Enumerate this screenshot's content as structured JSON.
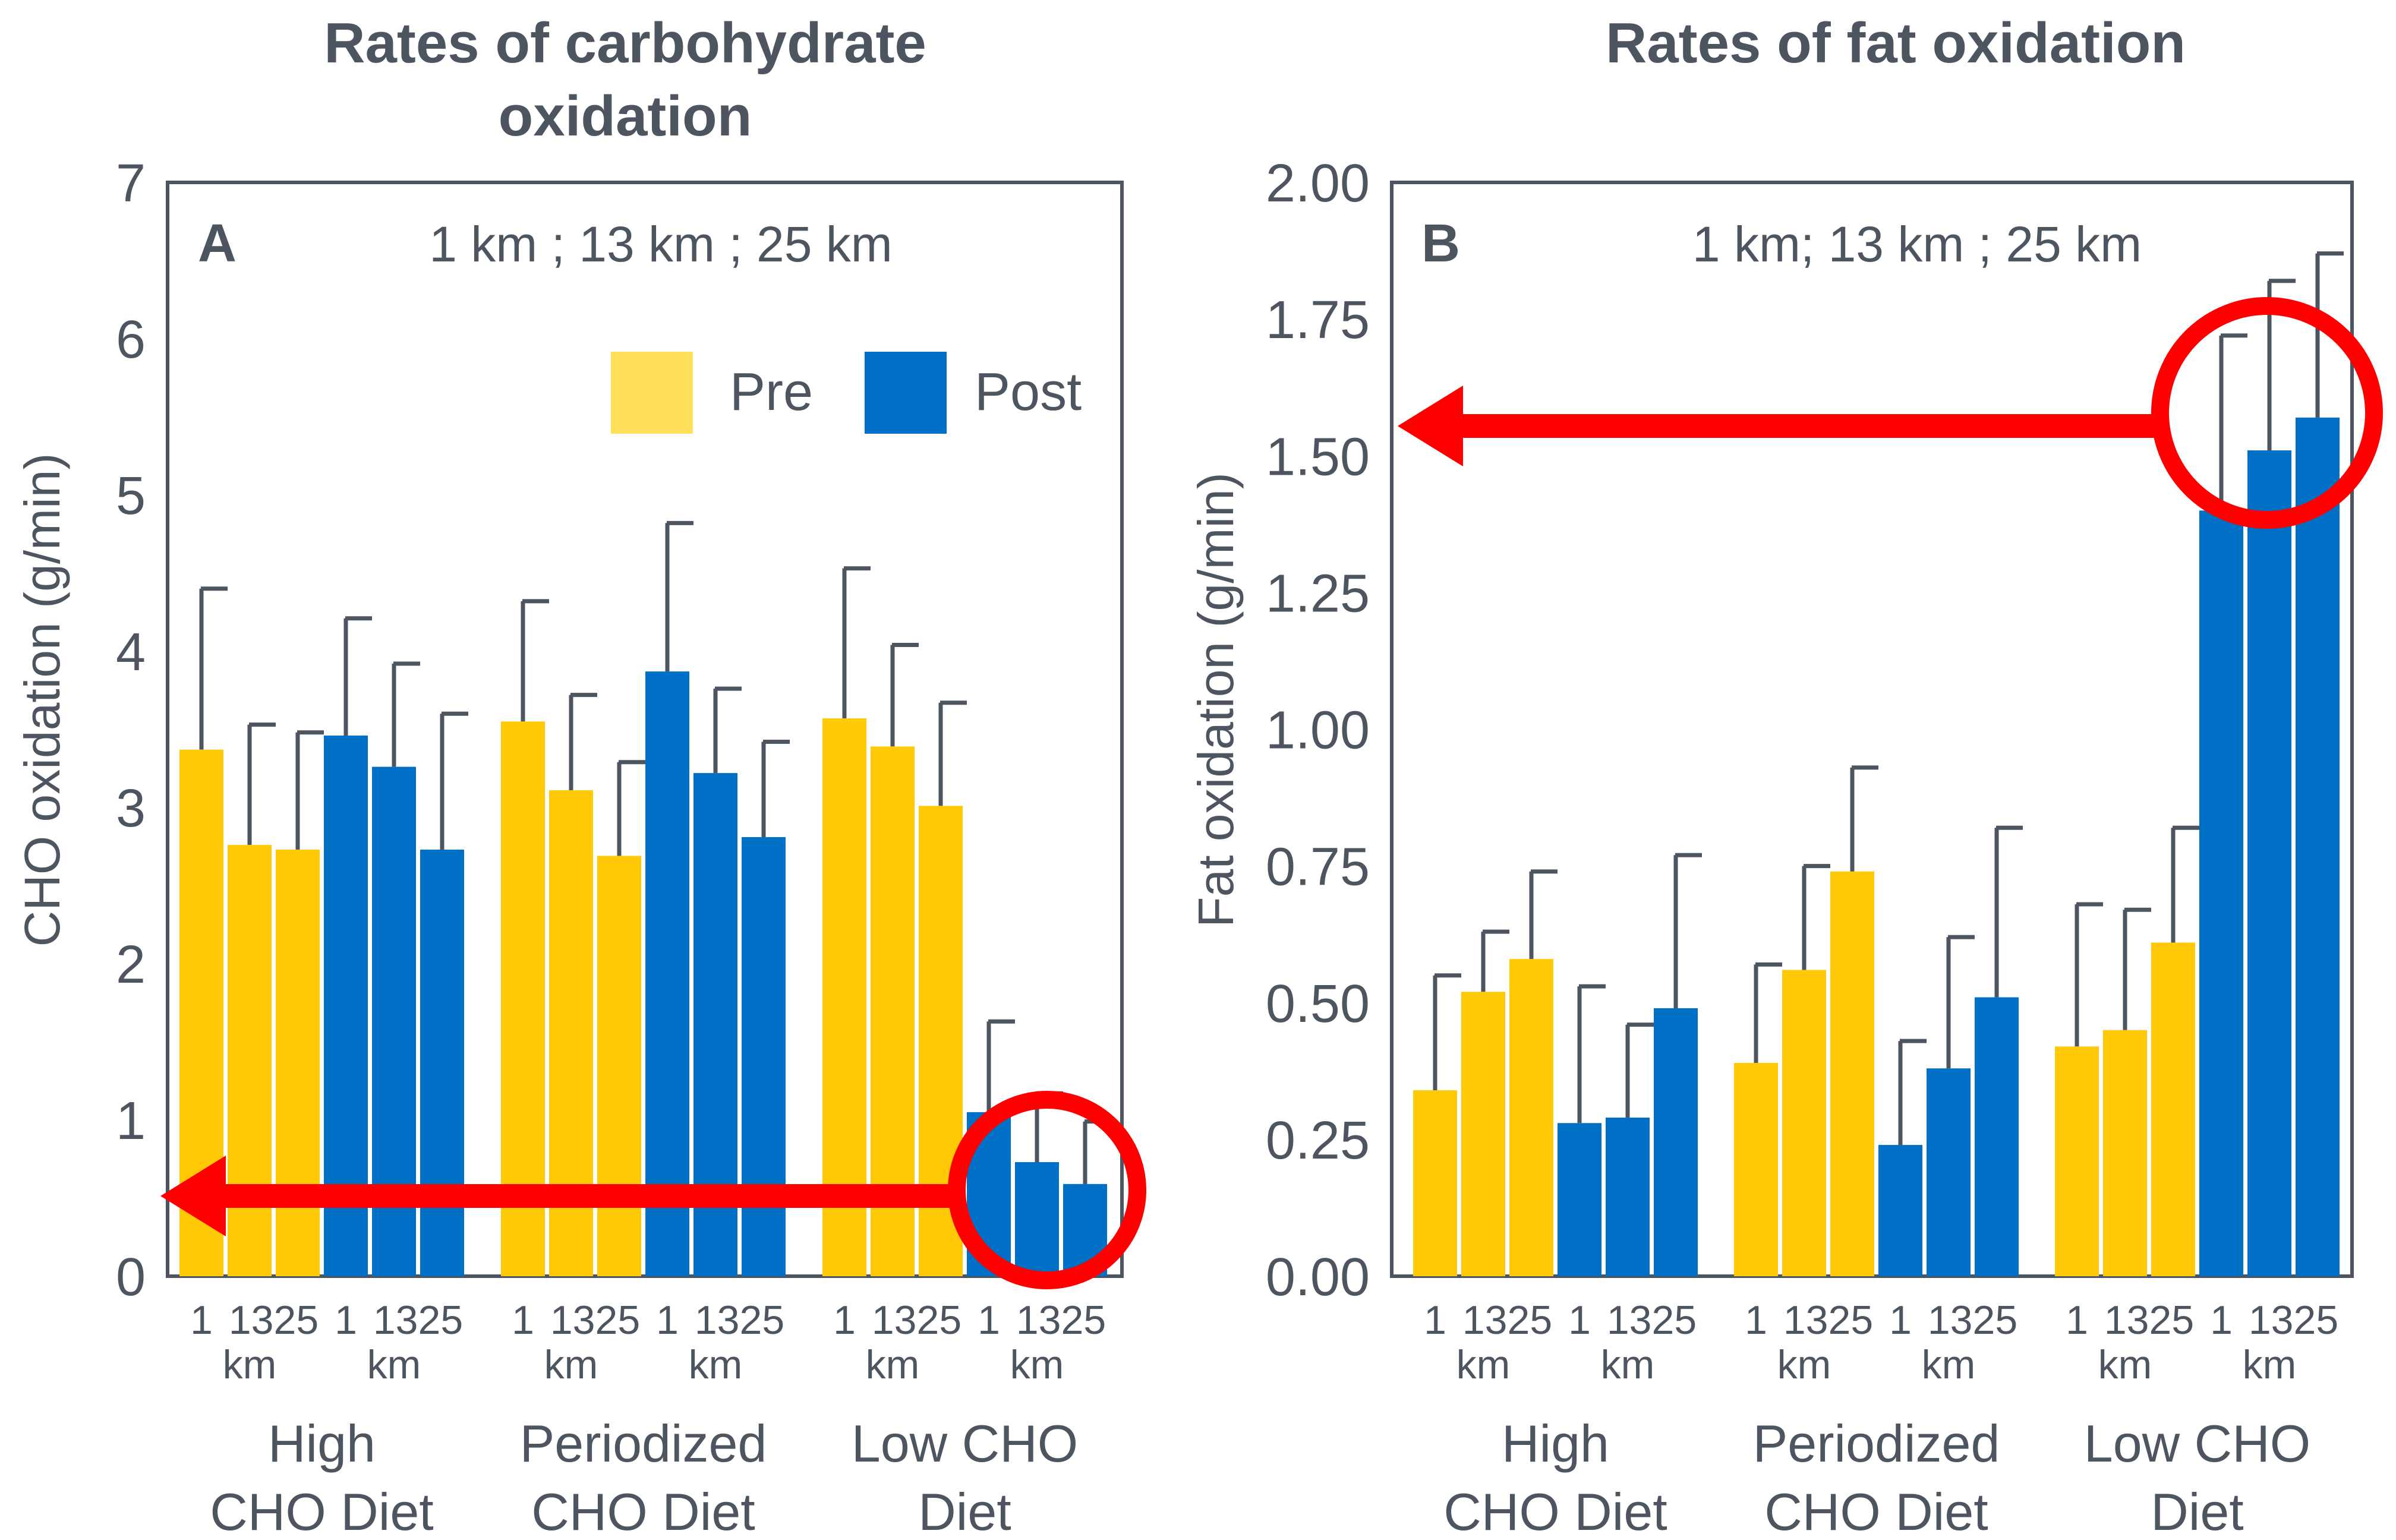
{
  "colors": {
    "pre": "#FFCA05",
    "post": "#0070C6",
    "axis": "#4d5560",
    "highlight": "#FF0000",
    "legend_pre": "#FFDF5A"
  },
  "legend": {
    "pre": "Pre",
    "post": "Post"
  },
  "chart_data": [
    {
      "type": "bar",
      "panel": "A",
      "title": [
        "Rates of carbohydrate",
        "oxidation"
      ],
      "ylabel": "CHO oxidation (g/min)",
      "ylim": [
        0,
        7
      ],
      "yticks": [
        "0",
        "1",
        "2",
        "3",
        "4",
        "5",
        "6",
        "7"
      ],
      "distances_note": "1 km ; 13 km ; 25 km",
      "groups": [
        {
          "label": [
            "High",
            "CHO Diet"
          ],
          "pre": {
            "values": [
              3.37,
              2.76,
              2.73
            ],
            "errors": [
              1.03,
              0.77,
              0.75
            ]
          },
          "post": {
            "values": [
              3.46,
              3.26,
              2.73
            ],
            "errors": [
              0.75,
              0.66,
              0.87
            ]
          }
        },
        {
          "label": [
            "Periodized",
            "CHO Diet"
          ],
          "pre": {
            "values": [
              3.55,
              3.11,
              2.69
            ],
            "errors": [
              0.77,
              0.61,
              0.6
            ]
          },
          "post": {
            "values": [
              3.87,
              3.22,
              2.81
            ],
            "errors": [
              0.95,
              0.54,
              0.61
            ]
          }
        },
        {
          "label": [
            "Low CHO",
            "Diet"
          ],
          "pre": {
            "values": [
              3.57,
              3.39,
              3.01
            ],
            "errors": [
              0.96,
              0.65,
              0.66
            ]
          },
          "post": {
            "values": [
              1.05,
              0.73,
              0.59
            ],
            "errors": [
              0.58,
              0.44,
              0.4
            ]
          }
        }
      ],
      "x_tick_labels": [
        "1",
        "13",
        "25",
        "1",
        "13",
        "25"
      ],
      "x_unit": "km"
    },
    {
      "type": "bar",
      "panel": "B",
      "title": [
        "Rates of fat oxidation"
      ],
      "ylabel": "Fat oxidation (g/min)",
      "ylim": [
        0,
        2
      ],
      "yticks": [
        "0.00",
        "0.25",
        "0.50",
        "0.75",
        "1.00",
        "1.25",
        "1.50",
        "1.75",
        "2.00"
      ],
      "distances_note": "1 km; 13 km ; 25 km",
      "groups": [
        {
          "label": [
            "High",
            "CHO Diet"
          ],
          "pre": {
            "values": [
              0.34,
              0.52,
              0.58
            ],
            "errors": [
              0.21,
              0.11,
              0.16
            ]
          },
          "post": {
            "values": [
              0.28,
              0.29,
              0.49
            ],
            "errors": [
              0.25,
              0.17,
              0.28
            ]
          }
        },
        {
          "label": [
            "Periodized",
            "CHO Diet"
          ],
          "pre": {
            "values": [
              0.39,
              0.56,
              0.74
            ],
            "errors": [
              0.18,
              0.19,
              0.19
            ]
          },
          "post": {
            "values": [
              0.24,
              0.38,
              0.51
            ],
            "errors": [
              0.19,
              0.24,
              0.31
            ]
          }
        },
        {
          "label": [
            "Low CHO",
            "Diet"
          ],
          "pre": {
            "values": [
              0.42,
              0.45,
              0.61
            ],
            "errors": [
              0.26,
              0.22,
              0.21
            ]
          },
          "post": {
            "values": [
              1.4,
              1.51,
              1.57
            ],
            "errors": [
              0.32,
              0.31,
              0.3
            ]
          }
        }
      ],
      "x_tick_labels": [
        "1",
        "13",
        "25",
        "1",
        "13",
        "25"
      ],
      "x_unit": "km"
    }
  ]
}
